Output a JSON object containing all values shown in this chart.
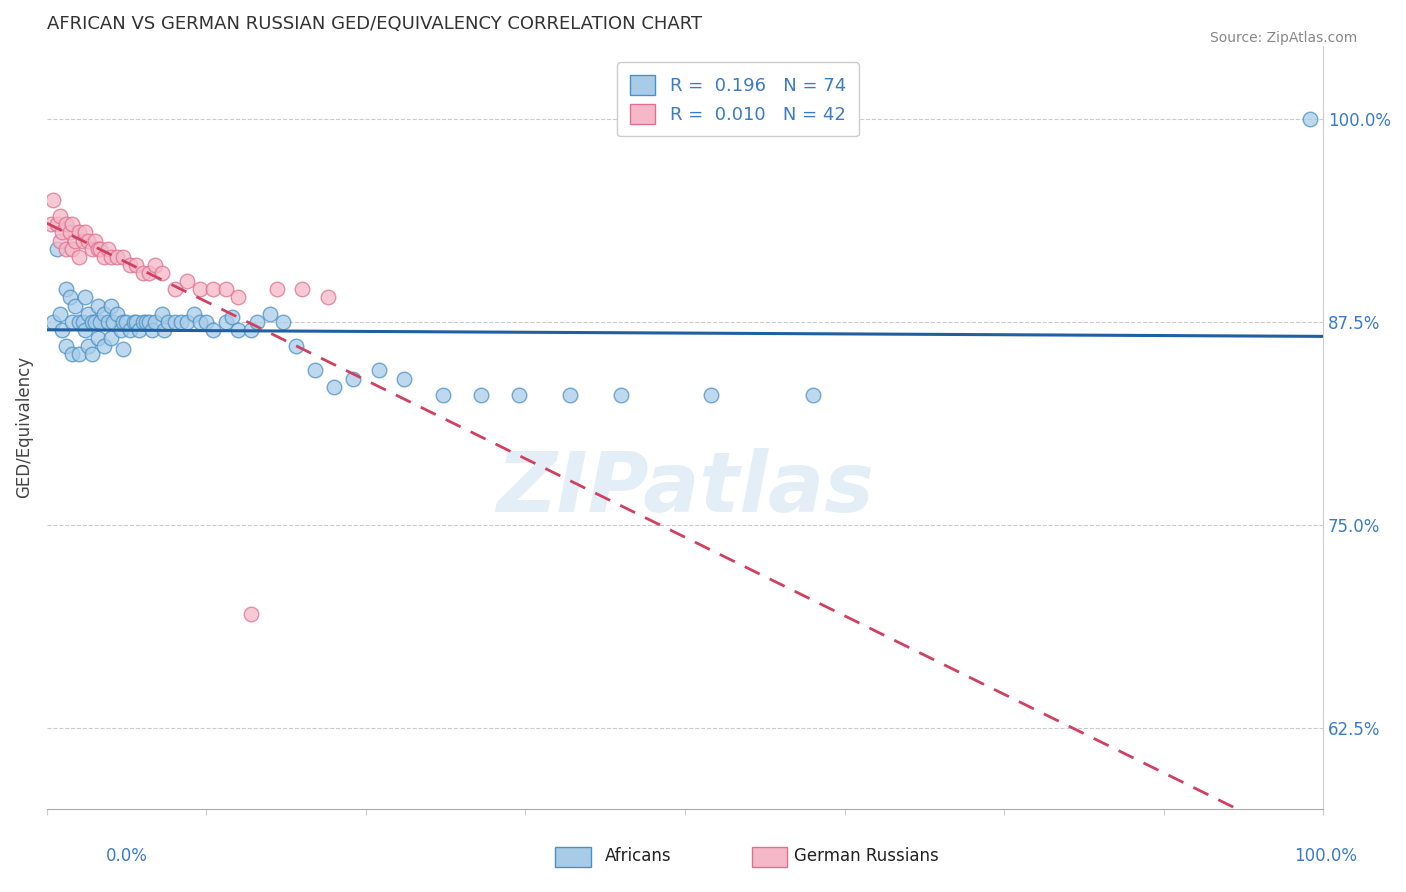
{
  "title": "AFRICAN VS GERMAN RUSSIAN GED/EQUIVALENCY CORRELATION CHART",
  "source": "Source: ZipAtlas.com",
  "ylabel": "GED/Equivalency",
  "ytick_labels": [
    "62.5%",
    "75.0%",
    "87.5%",
    "100.0%"
  ],
  "ytick_values": [
    0.625,
    0.75,
    0.875,
    1.0
  ],
  "xtick_labels": [
    "0.0%",
    "100.0%"
  ],
  "xlim": [
    0.0,
    1.0
  ],
  "ylim": [
    0.575,
    1.045
  ],
  "legend_r1": "0.196",
  "legend_n1": "74",
  "legend_r2": "0.010",
  "legend_n2": "42",
  "watermark": "ZIPatlas",
  "blue_fill": "#a8cce8",
  "blue_edge": "#4a90c4",
  "pink_fill": "#f4b8c8",
  "pink_edge": "#e07090",
  "blue_line": "#2060a0",
  "pink_line": "#d04060",
  "africans_x": [
    0.005,
    0.008,
    0.01,
    0.012,
    0.015,
    0.015,
    0.018,
    0.02,
    0.02,
    0.022,
    0.025,
    0.025,
    0.028,
    0.03,
    0.03,
    0.032,
    0.032,
    0.035,
    0.035,
    0.038,
    0.04,
    0.04,
    0.042,
    0.045,
    0.045,
    0.048,
    0.05,
    0.05,
    0.052,
    0.055,
    0.058,
    0.06,
    0.06,
    0.062,
    0.065,
    0.068,
    0.07,
    0.072,
    0.075,
    0.078,
    0.08,
    0.082,
    0.085,
    0.09,
    0.092,
    0.095,
    0.1,
    0.105,
    0.11,
    0.115,
    0.12,
    0.125,
    0.13,
    0.14,
    0.145,
    0.15,
    0.16,
    0.165,
    0.175,
    0.185,
    0.195,
    0.21,
    0.225,
    0.24,
    0.26,
    0.28,
    0.31,
    0.34,
    0.37,
    0.41,
    0.45,
    0.52,
    0.6,
    0.99
  ],
  "africans_y": [
    0.875,
    0.92,
    0.88,
    0.87,
    0.895,
    0.86,
    0.89,
    0.875,
    0.855,
    0.885,
    0.875,
    0.855,
    0.875,
    0.89,
    0.87,
    0.88,
    0.86,
    0.875,
    0.855,
    0.875,
    0.885,
    0.865,
    0.875,
    0.88,
    0.86,
    0.875,
    0.885,
    0.865,
    0.875,
    0.88,
    0.87,
    0.875,
    0.858,
    0.875,
    0.87,
    0.875,
    0.875,
    0.87,
    0.875,
    0.875,
    0.875,
    0.87,
    0.875,
    0.88,
    0.87,
    0.875,
    0.875,
    0.875,
    0.875,
    0.88,
    0.875,
    0.875,
    0.87,
    0.875,
    0.878,
    0.87,
    0.87,
    0.875,
    0.88,
    0.875,
    0.86,
    0.845,
    0.835,
    0.84,
    0.845,
    0.84,
    0.83,
    0.83,
    0.83,
    0.83,
    0.83,
    0.83,
    0.83,
    1.0
  ],
  "german_russian_x": [
    0.003,
    0.005,
    0.008,
    0.01,
    0.01,
    0.012,
    0.015,
    0.015,
    0.018,
    0.02,
    0.02,
    0.022,
    0.025,
    0.025,
    0.028,
    0.03,
    0.032,
    0.035,
    0.038,
    0.04,
    0.042,
    0.045,
    0.048,
    0.05,
    0.055,
    0.06,
    0.065,
    0.07,
    0.075,
    0.08,
    0.085,
    0.09,
    0.1,
    0.11,
    0.12,
    0.13,
    0.14,
    0.15,
    0.16,
    0.18,
    0.2,
    0.22
  ],
  "german_russian_y": [
    0.935,
    0.95,
    0.935,
    0.94,
    0.925,
    0.93,
    0.935,
    0.92,
    0.93,
    0.935,
    0.92,
    0.925,
    0.93,
    0.915,
    0.925,
    0.93,
    0.925,
    0.92,
    0.925,
    0.92,
    0.92,
    0.915,
    0.92,
    0.915,
    0.915,
    0.915,
    0.91,
    0.91,
    0.905,
    0.905,
    0.91,
    0.905,
    0.895,
    0.9,
    0.895,
    0.895,
    0.895,
    0.89,
    0.695,
    0.895,
    0.895,
    0.89
  ]
}
